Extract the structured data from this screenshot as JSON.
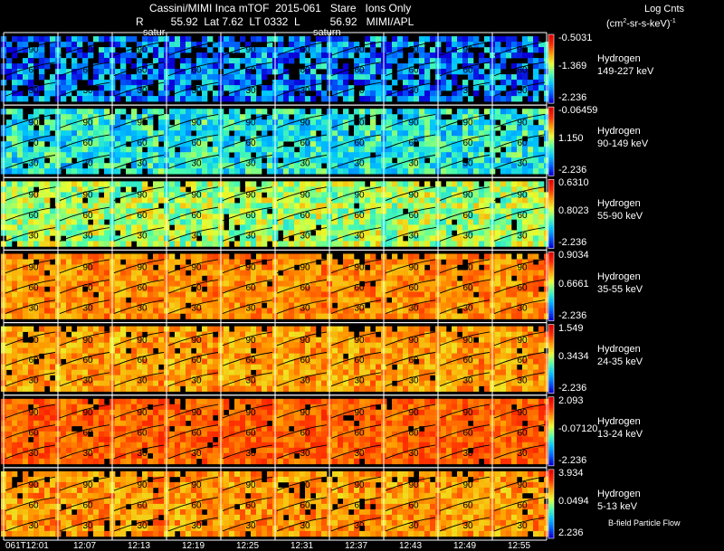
{
  "header": {
    "title": "Cassini/MIMI Inca mTOF  2015-061   Stare   Ions Only",
    "position_line": "R         55.92  Lat 7.62  LT 0332  L          56.92   MIMI/APL",
    "units_line1": "Log Cnts",
    "units_line2_prefix": "(cm",
    "units_line2_sup": "2",
    "units_line2_suffix": "-sr-s-keV)",
    "units_line2_end": "-1",
    "overlay_tag_1": "satur",
    "overlay_tag_2": "saturn"
  },
  "footer_note": "B-field Particle Flow",
  "chart_data": {
    "type": "heatmap",
    "title": "Cassini/MIMI Inca mTOF  2015-061   Stare   Ions Only",
    "x_tick_labels": [
      "061T12:01",
      "12:07",
      "12:13",
      "12:19",
      "12:25",
      "12:31",
      "12:37",
      "12:43",
      "12:49",
      "12:55"
    ],
    "image_grid": {
      "columns": 10,
      "rows": 7
    },
    "contour_latitude_labels": [
      "90",
      "60",
      "30"
    ],
    "colorbar_palette": [
      "#0a00d8",
      "#0068ff",
      "#00c8ff",
      "#50ffa8",
      "#e8ff30",
      "#ffa000",
      "#ff3000",
      "#e00000"
    ],
    "panels": [
      {
        "species": "Hydrogen",
        "energy": "149-227 keV",
        "cbar_max": "-0.5031",
        "cbar_mid": "-1.369",
        "cbar_min": "-2.236",
        "mean_level": 0.18,
        "spread": 0.22,
        "gap_fraction": 0.22
      },
      {
        "species": "Hydrogen",
        "energy": "90-149 keV",
        "cbar_max": "-0.06459",
        "cbar_mid": "1.150",
        "cbar_min": "-2.236",
        "mean_level": 0.36,
        "spread": 0.16,
        "gap_fraction": 0.06
      },
      {
        "species": "Hydrogen",
        "energy": "55-90 keV",
        "cbar_max": "0.6310",
        "cbar_mid": "0.8023",
        "cbar_min": "-2.236",
        "mean_level": 0.52,
        "spread": 0.15,
        "gap_fraction": 0.04
      },
      {
        "species": "Hydrogen",
        "energy": "35-55 keV",
        "cbar_max": "0.9034",
        "cbar_mid": "0.6661",
        "cbar_min": "-2.236",
        "mean_level": 0.74,
        "spread": 0.09,
        "gap_fraction": 0.03
      },
      {
        "species": "Hydrogen",
        "energy": "24-35 keV",
        "cbar_max": "1.549",
        "cbar_mid": "0.3434",
        "cbar_min": "-2.236",
        "mean_level": 0.72,
        "spread": 0.1,
        "gap_fraction": 0.03
      },
      {
        "species": "Hydrogen",
        "energy": "13-24 keV",
        "cbar_max": "2.093",
        "cbar_mid": "-0.07120",
        "cbar_min": "-2.236",
        "mean_level": 0.8,
        "spread": 0.08,
        "gap_fraction": 0.03
      },
      {
        "species": "Hydrogen",
        "energy": "5-13 keV",
        "cbar_max": "3.934",
        "cbar_mid": "0.0494",
        "cbar_min": "2.236",
        "mean_level": 0.73,
        "spread": 0.1,
        "gap_fraction": 0.04
      }
    ]
  }
}
